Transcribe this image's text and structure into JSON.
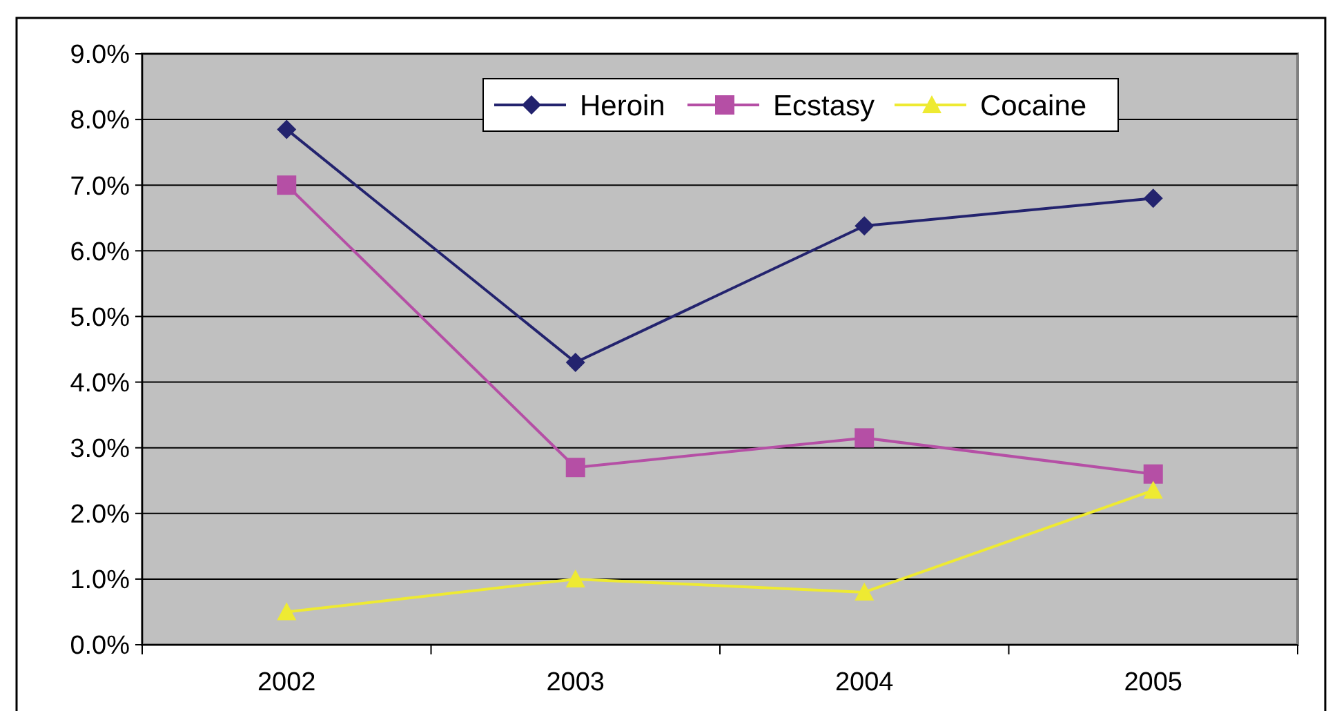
{
  "chart_data": {
    "type": "line",
    "categories": [
      "2002",
      "2003",
      "2004",
      "2005"
    ],
    "series": [
      {
        "name": "Heroin",
        "color": "#23236e",
        "marker": "diamond",
        "values": [
          7.85,
          4.3,
          6.38,
          6.8
        ]
      },
      {
        "name": "Ecstasy",
        "color": "#b54fa5",
        "marker": "square",
        "values": [
          7.0,
          2.7,
          3.15,
          2.6
        ]
      },
      {
        "name": "Cocaine",
        "color": "#eeea32",
        "marker": "triangle",
        "values": [
          0.5,
          1.0,
          0.8,
          2.35
        ]
      }
    ],
    "ylim": [
      0,
      9
    ],
    "yticks": [
      {
        "value": 0,
        "label": "0.0%"
      },
      {
        "value": 1,
        "label": "1.0%"
      },
      {
        "value": 2,
        "label": "2.0%"
      },
      {
        "value": 3,
        "label": "3.0%"
      },
      {
        "value": 4,
        "label": "4.0%"
      },
      {
        "value": 5,
        "label": "5.0%"
      },
      {
        "value": 6,
        "label": "6.0%"
      },
      {
        "value": 7,
        "label": "7.0%"
      },
      {
        "value": 8,
        "label": "8.0%"
      },
      {
        "value": 9,
        "label": "9.0%"
      }
    ],
    "grid": "y",
    "legend": "top right",
    "line_style": "solid"
  }
}
